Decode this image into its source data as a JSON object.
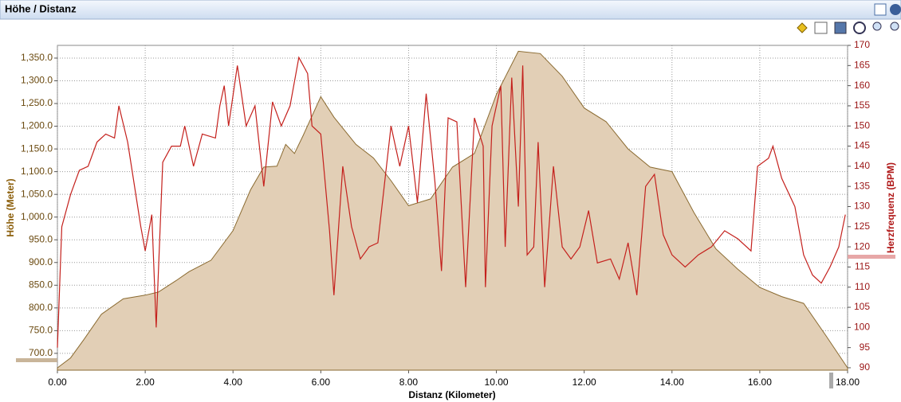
{
  "window_title": "Höhe / Distanz",
  "chart_data": {
    "type": "area-line",
    "xlabel": "Distanz (Kilometer)",
    "ylabel": "Höhe (Meter)",
    "y2label": "Herzfrequenz (BPM)",
    "xlim": [
      0,
      18
    ],
    "xticks": [
      {
        "value": 0,
        "label": "0.00"
      },
      {
        "value": 2,
        "label": "2.00"
      },
      {
        "value": 4,
        "label": "4.00"
      },
      {
        "value": 6,
        "label": "6.00"
      },
      {
        "value": 8,
        "label": "8.00"
      },
      {
        "value": 10,
        "label": "10.00"
      },
      {
        "value": 12,
        "label": "12.00"
      },
      {
        "value": 14,
        "label": "14.00"
      },
      {
        "value": 16,
        "label": "16.00"
      },
      {
        "value": 18,
        "label": "18.00"
      }
    ],
    "ylim": [
      663,
      1378
    ],
    "yticks": [
      {
        "value": 700,
        "label": "700.0"
      },
      {
        "value": 750,
        "label": "750.0"
      },
      {
        "value": 800,
        "label": "800.0"
      },
      {
        "value": 850,
        "label": "850.0"
      },
      {
        "value": 900,
        "label": "900.0"
      },
      {
        "value": 950,
        "label": "950.0"
      },
      {
        "value": 1000,
        "label": "1,000.0"
      },
      {
        "value": 1050,
        "label": "1,050.0"
      },
      {
        "value": 1100,
        "label": "1,100.0"
      },
      {
        "value": 1150,
        "label": "1,150.0"
      },
      {
        "value": 1200,
        "label": "1,200.0"
      },
      {
        "value": 1250,
        "label": "1,250.0"
      },
      {
        "value": 1300,
        "label": "1,300.0"
      },
      {
        "value": 1350,
        "label": "1,350.0"
      }
    ],
    "y2lim": [
      89.4,
      170
    ],
    "y2ticks": [
      90,
      95,
      100,
      105,
      110,
      115,
      120,
      125,
      130,
      135,
      140,
      145,
      150,
      155,
      160,
      165,
      170
    ],
    "grid": true,
    "series": [
      {
        "type": "area",
        "color": "#e2cfb6",
        "x": [
          0,
          0.3,
          0.6,
          1.0,
          1.5,
          2.0,
          2.3,
          2.7,
          3.0,
          3.5,
          4.0,
          4.4,
          4.7,
          5.0,
          5.2,
          5.4,
          5.6,
          6.0,
          6.3,
          6.8,
          7.2,
          7.6,
          8.0,
          8.5,
          9.0,
          9.5,
          10.0,
          10.5,
          11.0,
          11.5,
          12.0,
          12.5,
          13.0,
          13.5,
          14.0,
          14.5,
          15.0,
          15.5,
          16.0,
          16.5,
          17.0,
          17.5,
          18.0
        ],
        "values": [
          668,
          690,
          730,
          786,
          820,
          828,
          835,
          860,
          880,
          905,
          970,
          1060,
          1110,
          1112,
          1160,
          1140,
          1180,
          1265,
          1220,
          1160,
          1130,
          1080,
          1025,
          1040,
          1110,
          1140,
          1270,
          1365,
          1360,
          1310,
          1240,
          1210,
          1150,
          1110,
          1100,
          1010,
          930,
          885,
          845,
          825,
          810,
          740,
          668
        ]
      },
      {
        "type": "line",
        "axis": "y2",
        "color": "#c4201c",
        "x": [
          0.0,
          0.1,
          0.3,
          0.5,
          0.7,
          0.9,
          1.1,
          1.3,
          1.4,
          1.6,
          1.7,
          1.9,
          2.0,
          2.15,
          2.25,
          2.4,
          2.6,
          2.8,
          2.9,
          3.1,
          3.3,
          3.6,
          3.7,
          3.8,
          3.9,
          4.1,
          4.3,
          4.5,
          4.7,
          4.9,
          5.1,
          5.3,
          5.5,
          5.7,
          5.8,
          6.0,
          6.2,
          6.3,
          6.5,
          6.7,
          6.9,
          7.1,
          7.3,
          7.6,
          7.8,
          8.0,
          8.2,
          8.4,
          8.6,
          8.75,
          8.9,
          9.1,
          9.3,
          9.5,
          9.7,
          9.75,
          9.9,
          10.1,
          10.2,
          10.35,
          10.5,
          10.6,
          10.7,
          10.85,
          10.95,
          11.1,
          11.3,
          11.5,
          11.7,
          11.9,
          12.1,
          12.3,
          12.6,
          12.8,
          13.0,
          13.2,
          13.4,
          13.6,
          13.8,
          14.0,
          14.3,
          14.6,
          14.9,
          15.2,
          15.5,
          15.8,
          15.95,
          16.2,
          16.3,
          16.5,
          16.8,
          17.0,
          17.2,
          17.4,
          17.6,
          17.8,
          17.95
        ],
        "values": [
          95,
          125,
          133,
          139,
          140,
          146,
          148,
          147,
          155,
          146,
          139,
          125,
          119,
          128,
          100,
          141,
          145,
          145,
          150,
          140,
          148,
          147,
          155,
          160,
          150,
          165,
          150,
          155,
          135,
          156,
          150,
          155,
          167,
          163,
          150,
          148,
          124,
          108,
          140,
          125,
          117,
          120,
          121,
          150,
          140,
          150,
          131,
          158,
          136,
          114,
          152,
          151,
          110,
          152,
          145,
          110,
          150,
          160,
          120,
          162,
          130,
          165,
          118,
          120,
          146,
          110,
          140,
          120,
          117,
          120,
          129,
          116,
          117,
          112,
          121,
          108,
          135,
          138,
          123,
          118,
          115,
          118,
          120,
          124,
          122,
          119,
          140,
          142,
          145,
          137,
          130,
          118,
          113,
          111,
          115,
          120,
          128
        ]
      }
    ]
  }
}
